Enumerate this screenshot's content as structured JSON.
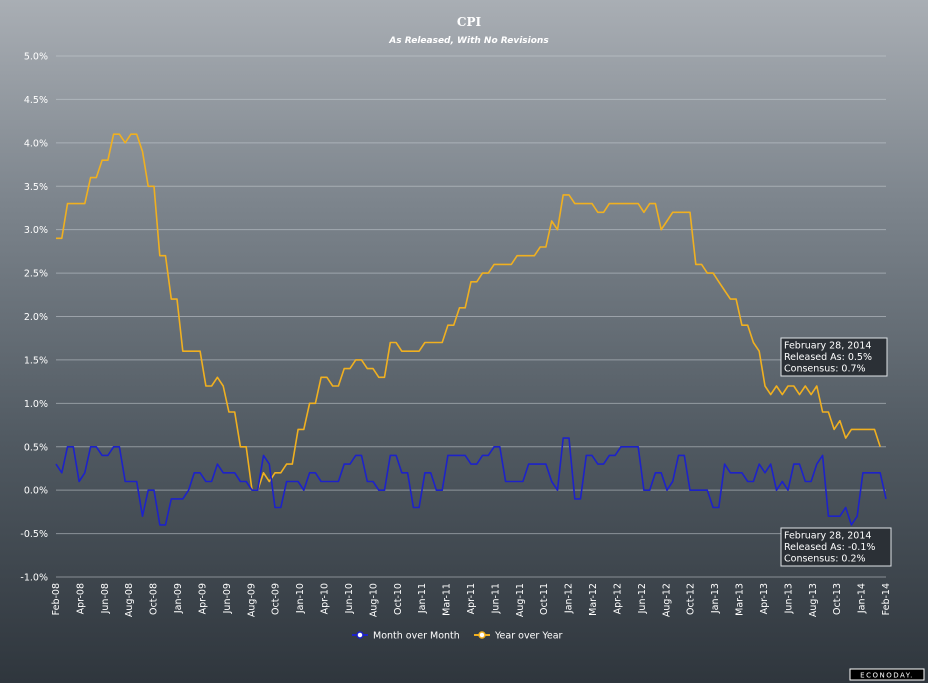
{
  "chart_data": {
    "type": "line",
    "title": "CPI",
    "subtitle": "As Released, With No Revisions",
    "ylim": [
      -1.0,
      5.0
    ],
    "y_ticks": [
      "5.0%",
      "4.5%",
      "4.0%",
      "3.5%",
      "3.0%",
      "2.5%",
      "2.0%",
      "1.5%",
      "1.0%",
      "0.5%",
      "0.0%",
      "-0.5%",
      "-1.0%"
    ],
    "grid": true,
    "legend_position": "bottom",
    "x_ticks": [
      "Feb-08",
      "Apr-08",
      "Jun-08",
      "Aug-08",
      "Oct-08",
      "Jan-09",
      "Apr-09",
      "Jun-09",
      "Aug-09",
      "Oct-09",
      "Jan-10",
      "Apr-10",
      "Jun-10",
      "Aug-10",
      "Oct-10",
      "Jan-11",
      "Mar-11",
      "Apr-11",
      "Jun-11",
      "Aug-11",
      "Oct-11",
      "Jan-12",
      "Mar-12",
      "Apr-12",
      "Jun-12",
      "Aug-12",
      "Oct-12",
      "Jan-13",
      "Mar-13",
      "Apr-13",
      "Jun-13",
      "Aug-13",
      "Oct-13",
      "Jan-14",
      "Feb-14"
    ],
    "series": [
      {
        "name": "Month over Month",
        "color": "#1d22c9",
        "values": [
          0.3,
          0.2,
          0.5,
          0.5,
          0.1,
          0.2,
          0.5,
          0.5,
          0.4,
          0.4,
          0.5,
          0.5,
          0.1,
          0.1,
          0.1,
          -0.3,
          0.0,
          0.0,
          -0.4,
          -0.4,
          -0.1,
          -0.1,
          -0.1,
          0.0,
          0.2,
          0.2,
          0.1,
          0.1,
          0.3,
          0.2,
          0.2,
          0.2,
          0.1,
          0.1,
          0.0,
          0.0,
          0.4,
          0.3,
          -0.2,
          -0.2,
          0.1,
          0.1,
          0.1,
          0.0,
          0.2,
          0.2,
          0.1,
          0.1,
          0.1,
          0.1,
          0.3,
          0.3,
          0.4,
          0.4,
          0.1,
          0.1,
          0.0,
          0.0,
          0.4,
          0.4,
          0.2,
          0.2,
          -0.2,
          -0.2,
          0.2,
          0.2,
          0.0,
          0.0,
          0.4,
          0.4,
          0.4,
          0.4,
          0.3,
          0.3,
          0.4,
          0.4,
          0.5,
          0.5,
          0.1,
          0.1,
          0.1,
          0.1,
          0.3,
          0.3,
          0.3,
          0.3,
          0.1,
          0.0,
          0.6,
          0.6,
          -0.1,
          -0.1,
          0.4,
          0.4,
          0.3,
          0.3,
          0.4,
          0.4,
          0.5,
          0.5,
          0.5,
          0.5,
          0.0,
          0.0,
          0.2,
          0.2,
          0.0,
          0.1,
          0.4,
          0.4,
          0.0,
          0.0,
          0.0,
          0.0,
          -0.2,
          -0.2,
          0.3,
          0.2,
          0.2,
          0.2,
          0.1,
          0.1,
          0.3,
          0.2,
          0.3,
          0.0,
          0.1,
          0.0,
          0.3,
          0.3,
          0.1,
          0.1,
          0.3,
          0.4,
          -0.3,
          -0.3,
          -0.3,
          -0.2,
          -0.4,
          -0.3,
          0.2,
          0.2,
          0.2,
          0.2,
          -0.1
        ]
      },
      {
        "name": "Year over Year",
        "color": "#f0b020",
        "values": [
          2.9,
          2.9,
          3.3,
          3.3,
          3.3,
          3.3,
          3.6,
          3.6,
          3.8,
          3.8,
          4.1,
          4.1,
          4.0,
          4.1,
          4.1,
          3.9,
          3.5,
          3.5,
          2.7,
          2.7,
          2.2,
          2.2,
          1.6,
          1.6,
          1.6,
          1.6,
          1.2,
          1.2,
          1.3,
          1.2,
          0.9,
          0.9,
          0.5,
          0.5,
          0.0,
          0.0,
          0.2,
          0.1,
          0.2,
          0.2,
          0.3,
          0.3,
          0.7,
          0.7,
          1.0,
          1.0,
          1.3,
          1.3,
          1.2,
          1.2,
          1.4,
          1.4,
          1.5,
          1.5,
          1.4,
          1.4,
          1.3,
          1.3,
          1.7,
          1.7,
          1.6,
          1.6,
          1.6,
          1.6,
          1.7,
          1.7,
          1.7,
          1.7,
          1.9,
          1.9,
          2.1,
          2.1,
          2.4,
          2.4,
          2.5,
          2.5,
          2.6,
          2.6,
          2.6,
          2.6,
          2.7,
          2.7,
          2.7,
          2.7,
          2.8,
          2.8,
          3.1,
          3.0,
          3.4,
          3.4,
          3.3,
          3.3,
          3.3,
          3.3,
          3.2,
          3.2,
          3.3,
          3.3,
          3.3,
          3.3,
          3.3,
          3.3,
          3.2,
          3.3,
          3.3,
          3.0,
          3.1,
          3.2,
          3.2,
          3.2,
          3.2,
          2.6,
          2.6,
          2.5,
          2.5,
          2.4,
          2.3,
          2.2,
          2.2,
          1.9,
          1.9,
          1.7,
          1.6,
          1.2,
          1.1,
          1.2,
          1.1,
          1.2,
          1.2,
          1.1,
          1.2,
          1.1,
          1.2,
          0.9,
          0.9,
          0.7,
          0.8,
          0.6,
          0.7,
          0.7,
          0.7,
          0.7,
          0.7,
          0.5
        ]
      }
    ],
    "annotations": [
      {
        "target": "Year over Year",
        "lines": [
          "February 28, 2014",
          "Released As: 0.5%",
          "Consensus: 0.7%"
        ]
      },
      {
        "target": "Month over Month",
        "lines": [
          "February 28, 2014",
          "Released As: -0.1%",
          "Consensus: 0.2%"
        ]
      }
    ]
  },
  "brand": "ECONODAY."
}
